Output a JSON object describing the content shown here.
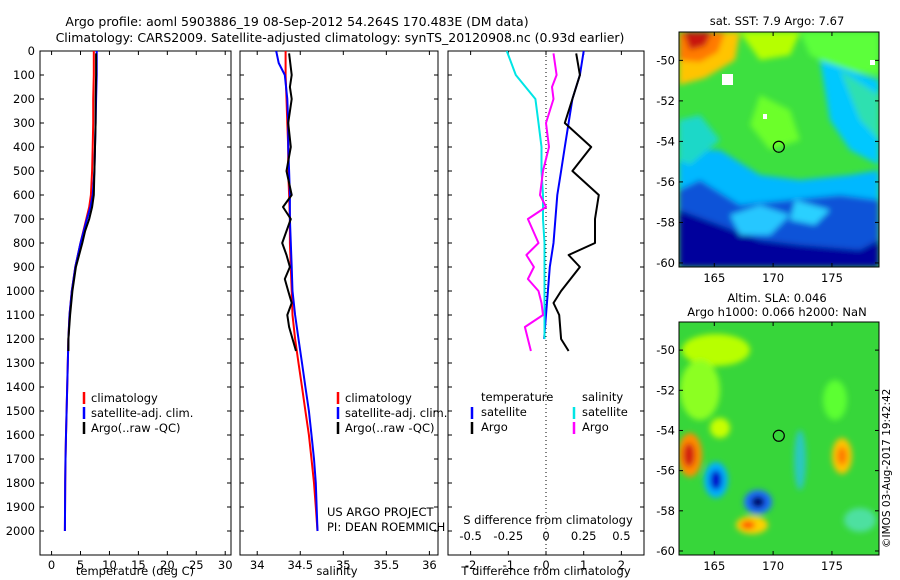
{
  "title": {
    "line1": "Argo profile: aoml 5903886_19 08-Sep-2012 54.264S 170.483E (DM data)",
    "line2": "Climatology: CARS2009. Satellite-adjusted climatology: synTS_20120908.nc (0.93d earlier)"
  },
  "colors": {
    "climatology": "#ff0000",
    "satellite": "#0000ff",
    "argo": "#000000",
    "sat_salinity": "#00e5e5",
    "argo_salinity": "#ff00ff"
  },
  "chart_data": [
    {
      "type": "line",
      "xlabel": "temperature (deg C)",
      "ylabel": "",
      "xlim": [
        -2,
        31
      ],
      "ylim": [
        0,
        2100
      ],
      "x_ticks": [
        0,
        5,
        10,
        15,
        20,
        25,
        30
      ],
      "y_ticks": [
        0,
        100,
        200,
        300,
        400,
        500,
        600,
        700,
        800,
        900,
        1000,
        1100,
        1200,
        1300,
        1400,
        1500,
        1600,
        1700,
        1800,
        1900,
        2000
      ],
      "legend": [
        "climatology",
        "satellite-adj. clim.",
        "Argo(..raw -QC)"
      ],
      "series": [
        {
          "name": "climatology",
          "color": "#ff0000",
          "x": [
            7.3,
            7.3,
            7.2,
            7.2,
            7.1,
            7.0,
            6.8,
            6.5,
            6.0,
            5.0,
            4.1,
            3.5,
            3.1,
            2.9,
            2.8,
            2.7,
            2.6,
            2.5,
            2.4,
            2.35,
            2.3
          ],
          "y": [
            0,
            100,
            200,
            300,
            400,
            500,
            600,
            650,
            700,
            800,
            900,
            1000,
            1100,
            1200,
            1300,
            1400,
            1500,
            1600,
            1700,
            1800,
            2000
          ]
        },
        {
          "name": "satellite-adj. clim.",
          "color": "#0000ff",
          "x": [
            7.8,
            7.8,
            7.7,
            7.6,
            7.5,
            7.4,
            7.1,
            6.7,
            6.1,
            5.0,
            4.1,
            3.5,
            3.1,
            2.9,
            2.8,
            2.7,
            2.6,
            2.5,
            2.4,
            2.35,
            2.3
          ],
          "y": [
            0,
            100,
            200,
            300,
            400,
            500,
            600,
            650,
            700,
            800,
            900,
            1000,
            1100,
            1200,
            1300,
            1400,
            1500,
            1600,
            1700,
            1800,
            2000
          ]
        },
        {
          "name": "Argo(..raw -QC)",
          "color": "#000000",
          "x": [
            7.7,
            7.7,
            7.6,
            7.6,
            7.5,
            7.4,
            7.3,
            7.0,
            6.5,
            5.8,
            5.3,
            4.2,
            3.6,
            3.2,
            2.9,
            2.9
          ],
          "y": [
            10,
            100,
            200,
            300,
            400,
            500,
            600,
            650,
            700,
            750,
            800,
            900,
            1000,
            1100,
            1200,
            1250
          ]
        }
      ]
    },
    {
      "type": "line",
      "xlabel": "salinity",
      "ylabel": "",
      "xlim": [
        33.8,
        36.1
      ],
      "ylim": [
        0,
        2100
      ],
      "x_ticks": [
        34,
        34.5,
        35,
        35.5,
        36
      ],
      "legend": [
        "climatology",
        "satellite-adj. clim.",
        "Argo(..raw -QC)"
      ],
      "series": [
        {
          "name": "climatology",
          "color": "#ff0000",
          "x": [
            34.33,
            34.33,
            34.34,
            34.35,
            34.36,
            34.36,
            34.37,
            34.38,
            34.38,
            34.39,
            34.4,
            34.41,
            34.44,
            34.48,
            34.52,
            34.56,
            34.6,
            34.63,
            34.66,
            34.68,
            34.7
          ],
          "y": [
            0,
            100,
            200,
            300,
            400,
            500,
            600,
            700,
            800,
            900,
            1000,
            1100,
            1200,
            1300,
            1400,
            1500,
            1600,
            1700,
            1800,
            1900,
            2000
          ]
        },
        {
          "name": "satellite-adj. clim.",
          "color": "#0000ff",
          "x": [
            34.22,
            34.25,
            34.32,
            34.35,
            34.36,
            34.36,
            34.37,
            34.38,
            34.38,
            34.39,
            34.4,
            34.41,
            34.44,
            34.48,
            34.52,
            34.56,
            34.6,
            34.63,
            34.66,
            34.68,
            34.7
          ],
          "y": [
            0,
            50,
            100,
            200,
            300,
            400,
            500,
            600,
            700,
            800,
            900,
            1000,
            1100,
            1200,
            1300,
            1400,
            1500,
            1600,
            1700,
            1800,
            2000
          ]
        },
        {
          "name": "Argo(..raw -QC)",
          "color": "#000000",
          "x": [
            34.37,
            34.4,
            34.38,
            34.4,
            34.36,
            34.39,
            34.34,
            34.4,
            34.3,
            34.39,
            34.29,
            34.34,
            34.38,
            34.32,
            34.36,
            34.4,
            34.35,
            34.37,
            34.45
          ],
          "y": [
            10,
            100,
            150,
            200,
            300,
            400,
            500,
            600,
            650,
            700,
            800,
            850,
            900,
            950,
            1000,
            1050,
            1100,
            1150,
            1250
          ]
        }
      ]
    },
    {
      "type": "line",
      "xlabel": "T difference from climatology",
      "x2label": "S difference from climatology",
      "xlim": [
        -2.6,
        2.6
      ],
      "x_ticks": [
        -2,
        -1,
        0,
        1,
        2
      ],
      "x2_ticks": [
        -0.5,
        -0.25,
        0,
        0.25,
        0.5
      ],
      "ylim": [
        0,
        2100
      ],
      "legend_left": {
        "head": "temperature",
        "items": [
          "satellite",
          "Argo"
        ]
      },
      "legend_right": {
        "head": "salinity",
        "items": [
          "satellite",
          "Argo"
        ]
      },
      "series": [
        {
          "name": "temperature satellite",
          "color": "#0000ff",
          "x": [
            1.0,
            0.9,
            0.7,
            0.6,
            0.5,
            0.4,
            0.3,
            0.25,
            0.2,
            0.1,
            0.05,
            0.0,
            -0.05
          ],
          "y": [
            0,
            100,
            200,
            300,
            400,
            500,
            600,
            700,
            800,
            900,
            1000,
            1100,
            1200
          ]
        },
        {
          "name": "temperature Argo",
          "color": "#000000",
          "x": [
            0.8,
            0.9,
            0.7,
            0.5,
            1.2,
            0.7,
            1.4,
            1.3,
            1.3,
            0.6,
            0.9,
            0.4,
            0.2,
            0.35,
            0.4,
            0.6
          ],
          "y": [
            10,
            100,
            200,
            300,
            400,
            500,
            600,
            700,
            800,
            850,
            900,
            1000,
            1050,
            1100,
            1200,
            1250
          ]
        },
        {
          "name": "salinity satellite",
          "color": "#00e5e5",
          "x": [
            -0.26,
            -0.2,
            -0.07,
            -0.05,
            -0.03,
            -0.03,
            -0.02,
            -0.02,
            -0.01,
            -0.01,
            -0.01,
            -0.01,
            -0.01
          ],
          "y": [
            0,
            100,
            200,
            300,
            400,
            500,
            600,
            700,
            800,
            900,
            1000,
            1100,
            1200
          ]
        },
        {
          "name": "salinity Argo",
          "color": "#ff00ff",
          "x": [
            0.05,
            0.07,
            0.04,
            0.05,
            0.0,
            0.02,
            -0.02,
            -0.04,
            0.0,
            -0.12,
            -0.05,
            -0.13,
            -0.08,
            -0.12,
            -0.05,
            -0.03,
            -0.02,
            -0.14,
            -0.1
          ],
          "y": [
            10,
            100,
            150,
            200,
            300,
            400,
            500,
            600,
            650,
            700,
            800,
            850,
            900,
            950,
            1000,
            1050,
            1100,
            1150,
            1250
          ]
        }
      ]
    },
    {
      "type": "heatmap",
      "title": "sat. SST: 7.9 Argo: 7.67",
      "xlim": [
        162,
        179
      ],
      "ylim": [
        -60.2,
        -48.6
      ],
      "x_ticks": [
        165,
        170,
        175
      ],
      "y_ticks": [
        -50,
        -52,
        -54,
        -56,
        -58,
        -60
      ],
      "marker": {
        "lon": 170.483,
        "lat": -54.264
      }
    },
    {
      "type": "heatmap",
      "title": "Altim. SLA: 0.046",
      "subtitle": "Argo h1000: 0.066 h2000: NaN",
      "xlim": [
        162,
        179
      ],
      "ylim": [
        -60.2,
        -48.6
      ],
      "x_ticks": [
        165,
        170,
        175
      ],
      "y_ticks": [
        -50,
        -52,
        -54,
        -56,
        -58,
        -60
      ],
      "marker": {
        "lon": 170.483,
        "lat": -54.264
      }
    }
  ],
  "panel1": {
    "legend": [
      "climatology",
      "satellite-adj. clim.",
      "Argo(..raw -QC)"
    ]
  },
  "panel2": {
    "legend": [
      "climatology",
      "satellite-adj. clim.",
      "Argo(..raw -QC)"
    ],
    "project_line1": "US ARGO PROJECT",
    "project_line2": "PI: DEAN ROEMMICH"
  },
  "panel3": {
    "legend_left_head": "temperature",
    "legend_right_head": "salinity",
    "legend_sat": "satellite",
    "legend_argo": "Argo"
  },
  "watermark": "©IMOS 03-Aug-2017 19:42:42"
}
